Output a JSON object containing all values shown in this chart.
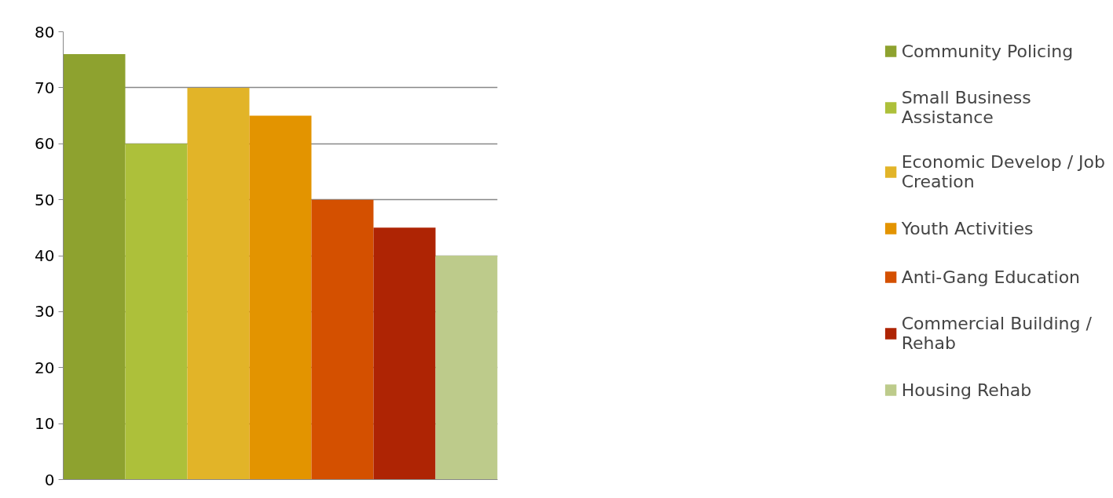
{
  "chart_data": {
    "type": "bar",
    "categories": [
      null
    ],
    "series": [
      {
        "name": "Community Policing",
        "color": "#8ea22f",
        "values": [
          76
        ]
      },
      {
        "name": "Small Business Assistance",
        "color": "#adc03a",
        "values": [
          60
        ]
      },
      {
        "name": "Economic Develop / Job Creation",
        "color": "#e2b428",
        "values": [
          70
        ]
      },
      {
        "name": "Youth Activities",
        "color": "#e39400",
        "values": [
          65
        ]
      },
      {
        "name": "Anti-Gang Education",
        "color": "#d45000",
        "values": [
          50
        ]
      },
      {
        "name": "Commercial Building / Rehab",
        "color": "#ae2404",
        "values": [
          45
        ]
      },
      {
        "name": "Housing Rehab",
        "color": "#bdcb8b",
        "values": [
          40
        ]
      }
    ],
    "ylim": [
      0,
      80
    ],
    "yticks": [
      0,
      10,
      20,
      30,
      40,
      50,
      60,
      70,
      80
    ],
    "grid": "y",
    "legend": "right"
  }
}
